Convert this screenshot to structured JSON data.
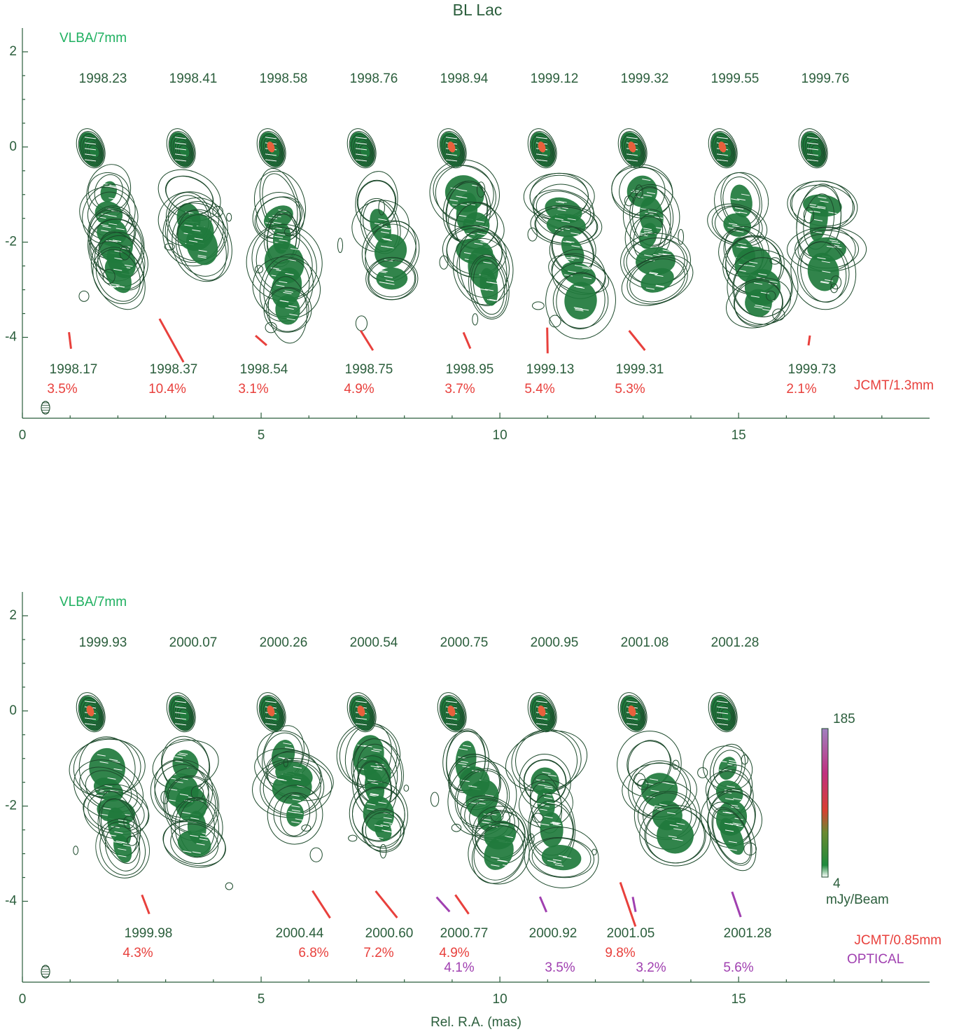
{
  "chart_data": [
    {
      "type": "map",
      "title": "BL Lac",
      "label": "VLBA/7mm",
      "xlim": [
        0,
        19
      ],
      "ylim": [
        -5.7,
        2.5
      ],
      "xticks": [
        0,
        5,
        10,
        15
      ],
      "yticks": [
        -4,
        -2,
        0,
        2
      ],
      "vlba_epochs": [
        "1998.23",
        "1998.41",
        "1998.58",
        "1998.76",
        "1998.94",
        "1999.12",
        "1999.32",
        "1999.55",
        "1999.76"
      ],
      "polarization": {
        "epochs": [
          "1998.17",
          "1998.37",
          "1998.54",
          "1998.75",
          "1998.95",
          "1999.13",
          "1999.31",
          null,
          "1999.73"
        ],
        "series": [
          {
            "name": "JCMT/1.3mm",
            "color": "#e8403c",
            "values": [
              3.5,
              10.4,
              3.1,
              4.9,
              3.7,
              5.4,
              5.3,
              null,
              2.1
            ],
            "value_labels": [
              "3.5%",
              "10.4%",
              "3.1%",
              "4.9%",
              "3.7%",
              "5.4%",
              "5.3%",
              null,
              "2.1%"
            ],
            "angles": [
              7,
              29,
              49,
              32,
              23,
              1,
              39,
              null,
              -8
            ]
          }
        ]
      }
    },
    {
      "type": "map",
      "label": "VLBA/7mm",
      "x_label": "Rel. R.A. (mas)",
      "xlim": [
        0,
        19
      ],
      "ylim": [
        -5.7,
        2.5
      ],
      "xticks": [
        0,
        5,
        10,
        15
      ],
      "yticks": [
        -4,
        -2,
        0,
        2
      ],
      "vlba_epochs": [
        "1999.93",
        "2000.07",
        "2000.26",
        "2000.54",
        "2000.75",
        "2000.95",
        "2001.08",
        "2001.28"
      ],
      "polarization": {
        "epochs": [
          "1999.98",
          "2000.44",
          "2000.60",
          "2000.77",
          "2000.92",
          "2001.05",
          "2001.28"
        ],
        "series": [
          {
            "name": "JCMT/0.85mm",
            "color": "#e8403c",
            "values": [
              4.3,
              6.8,
              7.2,
              4.9,
              null,
              9.8,
              null
            ],
            "value_labels": [
              "4.3%",
              "6.8%",
              "7.2%",
              "4.9%",
              null,
              "9.8%",
              null
            ],
            "angles": [
              21,
              33,
              39,
              35,
              null,
              19,
              null
            ]
          },
          {
            "name": "OPTICAL",
            "color": "#a040b0",
            "values": [
              null,
              null,
              null,
              4.1,
              3.5,
              3.2,
              5.6
            ],
            "value_labels": [
              null,
              null,
              null,
              "4.1%",
              "3.5%",
              "3.2%",
              "5.6%"
            ],
            "angles": [
              null,
              null,
              null,
              42,
              23,
              11,
              19
            ]
          }
        ]
      },
      "colorbar": {
        "ticks": [
          4,
          185
        ],
        "label": "mJy/Beam"
      }
    }
  ]
}
